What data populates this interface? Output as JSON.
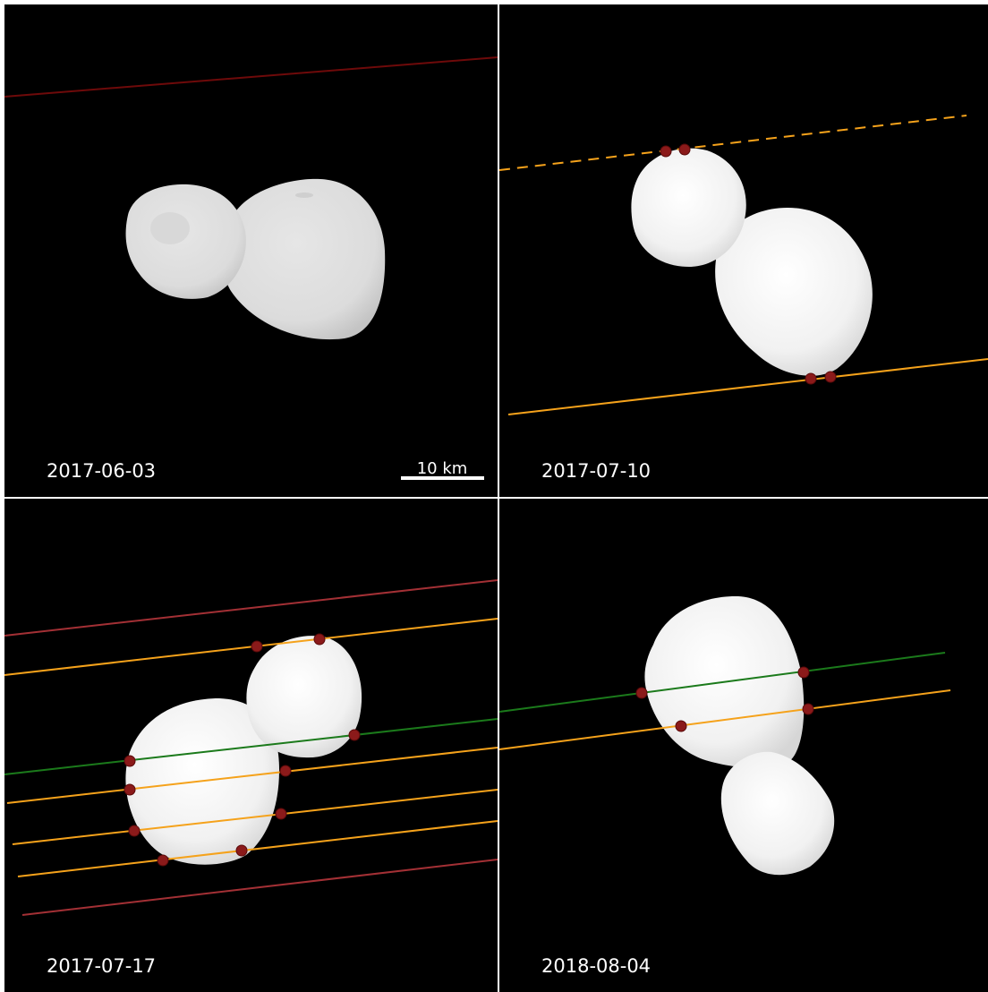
{
  "panels": [
    {
      "date": "2017-06-03"
    },
    {
      "date": "2017-07-10"
    },
    {
      "date": "2017-07-17"
    },
    {
      "date": "2018-08-04"
    }
  ],
  "scale_bar": {
    "label": "10 km"
  },
  "colors": {
    "background": "#000000",
    "body": "#f2f2f2",
    "chord_positive": "#f5a21b",
    "chord_green": "#1b7a1b",
    "chord_negative_dark": "#6e0a0a",
    "chord_negative": "#a33035",
    "chord_endpoint": "#8b1a1a"
  }
}
